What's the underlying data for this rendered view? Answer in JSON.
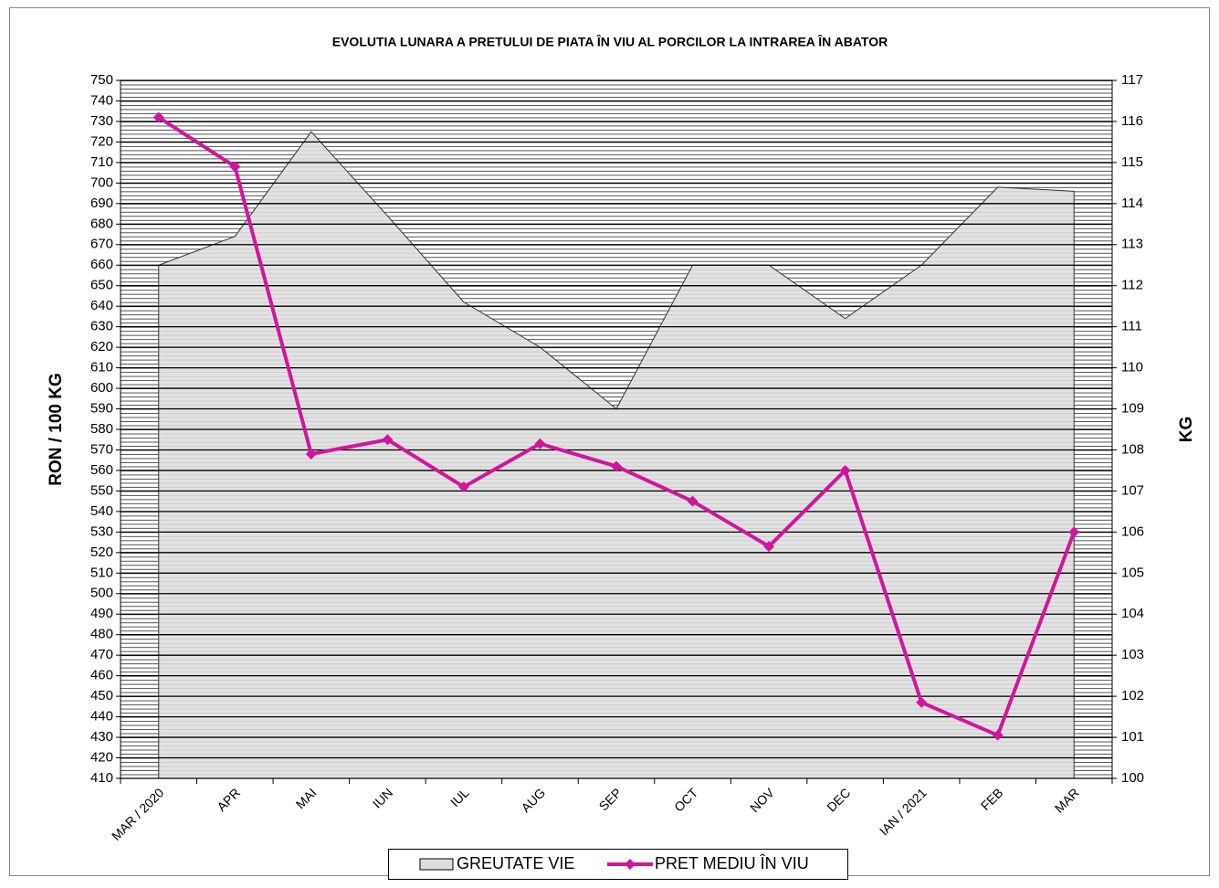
{
  "chart_data": {
    "type": "combo",
    "title": "EVOLUTIA LUNARA A PRETULUI  DE PIATA  ÎN VIU AL PORCILOR  LA INTRAREA ÎN ABATOR",
    "y_label": "RON / 100 KG",
    "y2_label": "KG",
    "categories": [
      "MAR / 2020",
      "APR",
      "MAI",
      "IUN",
      "IUL",
      "AUG",
      "SEP",
      "OCT",
      "NOV",
      "DEC",
      "IAN / 2021",
      "FEB",
      "MAR"
    ],
    "series": [
      {
        "name": "GREUTATE VIE",
        "type": "area",
        "axis": "y2",
        "color": "#dedede",
        "values": [
          112.5,
          113.2,
          115.75,
          113.7,
          111.6,
          110.5,
          109.0,
          112.5,
          112.5,
          111.2,
          112.5,
          114.4,
          114.3
        ]
      },
      {
        "name": "PRET MEDIU ÎN VIU",
        "type": "line",
        "color": "#d0169c",
        "values": [
          732,
          708,
          568,
          575,
          552,
          573,
          562,
          545,
          523,
          560,
          447,
          431,
          530
        ]
      }
    ],
    "ylim": [
      410,
      750
    ],
    "yticks": [
      410,
      420,
      430,
      440,
      450,
      460,
      470,
      480,
      490,
      500,
      510,
      520,
      530,
      540,
      550,
      560,
      570,
      580,
      590,
      600,
      610,
      620,
      630,
      640,
      650,
      660,
      670,
      680,
      690,
      700,
      710,
      720,
      730,
      740,
      750
    ],
    "y2lim": [
      100,
      117
    ],
    "y2ticks": [
      100,
      101,
      102,
      103,
      104,
      105,
      106,
      107,
      108,
      109,
      110,
      111,
      112,
      113,
      114,
      115,
      116,
      117
    ],
    "grid": true,
    "legend": "bottom"
  }
}
